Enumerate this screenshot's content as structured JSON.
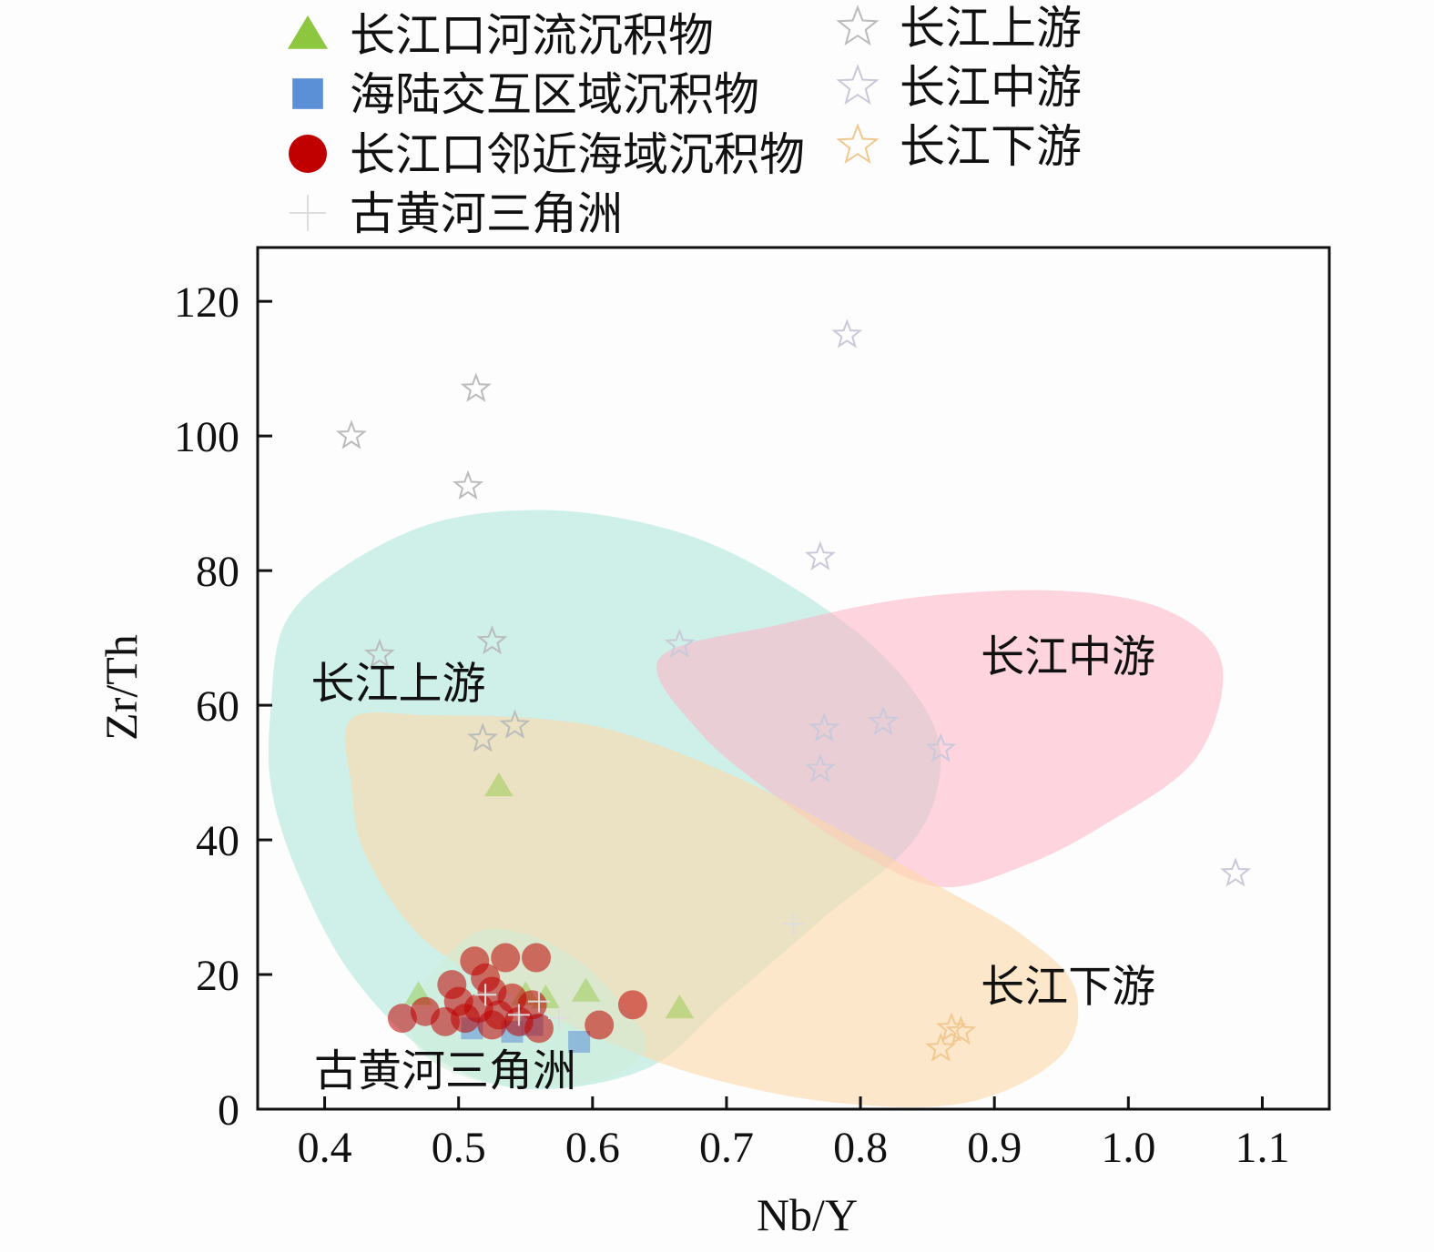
{
  "chart_data": {
    "type": "scatter",
    "title": "",
    "xlabel": "Nb/Y",
    "ylabel": "Zr/Th",
    "xlim": [
      0.35,
      1.15
    ],
    "ylim": [
      0,
      128
    ],
    "xticks": [
      "0.4",
      "0.5",
      "0.6",
      "0.7",
      "0.8",
      "0.9",
      "1.0",
      "1.1"
    ],
    "xtick_values": [
      0.4,
      0.5,
      0.6,
      0.7,
      0.8,
      0.9,
      1.0,
      1.1
    ],
    "yticks": [
      "0",
      "20",
      "40",
      "60",
      "80",
      "100",
      "120"
    ],
    "ytick_values": [
      0,
      20,
      40,
      60,
      80,
      100,
      120
    ],
    "grid": false,
    "legend_position": "top",
    "legend": [
      {
        "key": "yre_river",
        "label": "长江口河流沉积物",
        "marker": "triangle",
        "color": "#8dc63f"
      },
      {
        "key": "transition",
        "label": "海陆交互区域沉积物",
        "marker": "square",
        "color": "#5b8fd6"
      },
      {
        "key": "offshore",
        "label": "长江口邻近海域沉积物",
        "marker": "circle",
        "color": "#c00000"
      },
      {
        "key": "yellow_delta",
        "label": "古黄河三角洲",
        "marker": "plus",
        "color": "#dddddd"
      },
      {
        "key": "upper",
        "label": "长江上游",
        "marker": "star",
        "color": "#bbbbbb"
      },
      {
        "key": "middle",
        "label": "长江中游",
        "marker": "star",
        "color": "#c9c9d9"
      },
      {
        "key": "lower",
        "label": "长江下游",
        "marker": "star",
        "color": "#f0c890"
      }
    ],
    "regions": [
      {
        "key": "upper",
        "label": "长江上游",
        "color": "#9fe3d3",
        "opacity": 0.5
      },
      {
        "key": "middle",
        "label": "长江中游",
        "color": "#ffb3c6",
        "opacity": 0.55
      },
      {
        "key": "lower",
        "label": "长江下游",
        "color": "#fdd9a8",
        "opacity": 0.6
      },
      {
        "key": "yellow_delta",
        "label": "古黄河三角洲",
        "color": "#cdecd8",
        "opacity": 0.55
      }
    ],
    "series": [
      {
        "name": "长江上游",
        "key": "upper",
        "points": [
          [
            0.42,
            100
          ],
          [
            0.513,
            107
          ],
          [
            0.507,
            92.5
          ],
          [
            0.441,
            67.5
          ],
          [
            0.525,
            69.5
          ],
          [
            0.518,
            55
          ],
          [
            0.542,
            57
          ]
        ]
      },
      {
        "name": "长江中游",
        "key": "middle",
        "points": [
          [
            0.79,
            115
          ],
          [
            0.77,
            82
          ],
          [
            0.665,
            69
          ],
          [
            0.773,
            56.5
          ],
          [
            0.817,
            57.5
          ],
          [
            0.86,
            53.5
          ],
          [
            0.77,
            50.5
          ],
          [
            1.08,
            35
          ]
        ]
      },
      {
        "name": "长江下游",
        "key": "lower",
        "points": [
          [
            0.875,
            11.5
          ],
          [
            0.86,
            9
          ],
          [
            0.868,
            12
          ]
        ]
      },
      {
        "name": "长江口河流沉积物",
        "key": "yre_river",
        "points": [
          [
            0.47,
            17
          ],
          [
            0.55,
            17
          ],
          [
            0.565,
            16.5
          ],
          [
            0.665,
            15
          ],
          [
            0.53,
            48
          ],
          [
            0.595,
            17.5
          ]
        ]
      },
      {
        "name": "海陆交互区域沉积物",
        "key": "transition",
        "points": [
          [
            0.59,
            10
          ],
          [
            0.51,
            12
          ],
          [
            0.54,
            11.5
          ],
          [
            0.555,
            12.5
          ]
        ]
      },
      {
        "name": "长江口邻近海域沉积物",
        "key": "offshore",
        "points": [
          [
            0.458,
            13.5
          ],
          [
            0.512,
            22
          ],
          [
            0.535,
            22.5
          ],
          [
            0.558,
            22.5
          ],
          [
            0.63,
            15.5
          ],
          [
            0.605,
            12.5
          ],
          [
            0.495,
            18.5
          ],
          [
            0.52,
            19.5
          ],
          [
            0.5,
            16
          ],
          [
            0.525,
            17.5
          ],
          [
            0.54,
            16.5
          ],
          [
            0.555,
            15.5
          ],
          [
            0.475,
            14.5
          ],
          [
            0.49,
            13
          ],
          [
            0.505,
            13.5
          ],
          [
            0.53,
            14
          ],
          [
            0.545,
            13
          ],
          [
            0.56,
            12
          ],
          [
            0.515,
            15
          ],
          [
            0.525,
            12.5
          ]
        ]
      },
      {
        "name": "古黄河三角洲",
        "key": "yellow_delta",
        "points": [
          [
            0.545,
            14
          ],
          [
            0.56,
            16
          ],
          [
            0.52,
            17
          ],
          [
            0.575,
            13.5
          ],
          [
            0.75,
            27.5
          ]
        ]
      }
    ]
  }
}
